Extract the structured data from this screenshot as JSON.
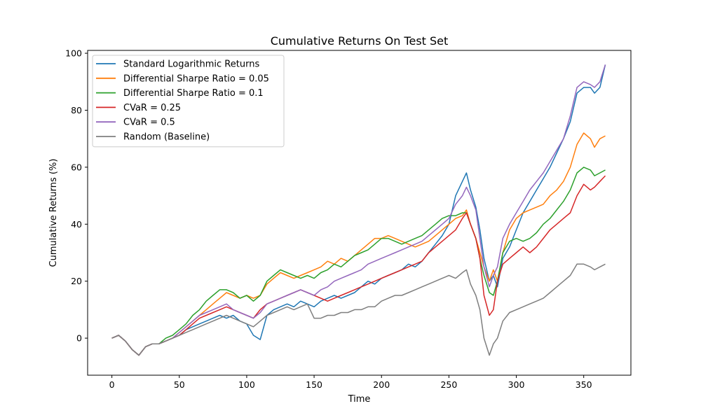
{
  "chart_data": {
    "type": "line",
    "title": "Cumulative Returns On Test Set",
    "xlabel": "Time",
    "ylabel": "Cumulative Returns (%)",
    "xlim": [
      -18,
      385
    ],
    "ylim": [
      -13,
      101
    ],
    "x_ticks": [
      0,
      50,
      100,
      150,
      200,
      250,
      300,
      350
    ],
    "y_ticks": [
      0,
      20,
      40,
      60,
      80,
      100
    ],
    "grid": false,
    "legend_position": "top-left",
    "series": [
      {
        "name": "Standard Logarithmic Returns",
        "color": "#1f77b4",
        "x": [
          0,
          5,
          10,
          15,
          20,
          25,
          30,
          35,
          40,
          45,
          50,
          55,
          60,
          65,
          70,
          75,
          80,
          85,
          90,
          95,
          100,
          105,
          110,
          115,
          120,
          125,
          130,
          135,
          140,
          145,
          150,
          155,
          160,
          165,
          170,
          175,
          180,
          185,
          190,
          195,
          200,
          205,
          210,
          215,
          220,
          225,
          230,
          235,
          240,
          245,
          250,
          255,
          260,
          263,
          266,
          270,
          273,
          276,
          280,
          283,
          286,
          290,
          295,
          300,
          305,
          310,
          315,
          320,
          325,
          330,
          335,
          340,
          345,
          350,
          355,
          358,
          362,
          366
        ],
        "y": [
          0,
          1,
          -1,
          -4,
          -6,
          -3,
          -2,
          -2,
          -1,
          0,
          1,
          3,
          4,
          5,
          6,
          7,
          8,
          7,
          8,
          6,
          5,
          1,
          -0.5,
          8,
          10,
          11,
          12,
          11,
          13,
          12,
          11,
          13,
          14,
          15,
          14,
          15,
          16,
          18,
          20,
          19,
          21,
          22,
          23,
          24,
          26,
          25,
          27,
          30,
          33,
          36,
          40,
          50,
          55,
          58,
          52,
          46,
          38,
          28,
          20,
          22,
          18,
          28,
          32,
          38,
          44,
          48,
          52,
          56,
          60,
          65,
          70,
          76,
          86,
          88,
          88,
          86,
          88,
          96
        ]
      },
      {
        "name": "Differential Sharpe Ratio = 0.05",
        "color": "#ff7f0e",
        "x": [
          0,
          5,
          10,
          15,
          20,
          25,
          30,
          35,
          40,
          45,
          50,
          55,
          60,
          65,
          70,
          75,
          80,
          85,
          90,
          95,
          100,
          105,
          110,
          115,
          120,
          125,
          130,
          135,
          140,
          145,
          150,
          155,
          160,
          165,
          170,
          175,
          180,
          185,
          190,
          195,
          200,
          205,
          210,
          215,
          220,
          225,
          230,
          235,
          240,
          245,
          250,
          255,
          260,
          263,
          266,
          270,
          273,
          276,
          280,
          283,
          286,
          290,
          295,
          300,
          305,
          310,
          315,
          320,
          325,
          330,
          335,
          340,
          345,
          350,
          355,
          358,
          362,
          366
        ],
        "y": [
          0,
          1,
          -1,
          -4,
          -6,
          -3,
          -2,
          -2,
          -1,
          0,
          2,
          4,
          6,
          8,
          10,
          12,
          14,
          16,
          15,
          14,
          15,
          14,
          15,
          19,
          21,
          23,
          22,
          21,
          22,
          23,
          24,
          25,
          27,
          26,
          28,
          27,
          29,
          31,
          33,
          35,
          35,
          36,
          35,
          34,
          33,
          32,
          33,
          34,
          36,
          38,
          40,
          42,
          43,
          45,
          40,
          35,
          30,
          25,
          20,
          24,
          20,
          30,
          38,
          42,
          44,
          45,
          46,
          47,
          50,
          52,
          55,
          60,
          68,
          72,
          70,
          67,
          70,
          71
        ]
      },
      {
        "name": "Differential Sharpe Ratio = 0.1",
        "color": "#2ca02c",
        "x": [
          0,
          5,
          10,
          15,
          20,
          25,
          30,
          35,
          40,
          45,
          50,
          55,
          60,
          65,
          70,
          75,
          80,
          85,
          90,
          95,
          100,
          105,
          110,
          115,
          120,
          125,
          130,
          135,
          140,
          145,
          150,
          155,
          160,
          165,
          170,
          175,
          180,
          185,
          190,
          195,
          200,
          205,
          210,
          215,
          220,
          225,
          230,
          235,
          240,
          245,
          250,
          255,
          260,
          263,
          266,
          270,
          273,
          276,
          280,
          283,
          286,
          290,
          295,
          300,
          305,
          310,
          315,
          320,
          325,
          330,
          335,
          340,
          345,
          350,
          355,
          358,
          362,
          366
        ],
        "y": [
          0,
          1,
          -1,
          -4,
          -6,
          -3,
          -2,
          -2,
          0,
          1,
          3,
          5,
          8,
          10,
          13,
          15,
          17,
          17,
          16,
          14,
          15,
          13,
          15,
          20,
          22,
          24,
          23,
          22,
          21,
          22,
          21,
          23,
          24,
          26,
          25,
          27,
          29,
          30,
          31,
          33,
          35,
          35,
          34,
          33,
          34,
          35,
          36,
          38,
          40,
          42,
          43,
          43,
          44,
          44,
          40,
          35,
          28,
          22,
          16,
          15,
          20,
          30,
          34,
          35,
          34,
          35,
          37,
          40,
          42,
          45,
          48,
          52,
          58,
          60,
          59,
          57,
          58,
          59
        ]
      },
      {
        "name": "CVaR = 0.25",
        "color": "#d62728",
        "x": [
          0,
          5,
          10,
          15,
          20,
          25,
          30,
          35,
          40,
          45,
          50,
          55,
          60,
          65,
          70,
          75,
          80,
          85,
          90,
          95,
          100,
          105,
          110,
          115,
          120,
          125,
          130,
          135,
          140,
          145,
          150,
          155,
          160,
          165,
          170,
          175,
          180,
          185,
          190,
          195,
          200,
          205,
          210,
          215,
          220,
          225,
          230,
          235,
          240,
          245,
          250,
          255,
          260,
          263,
          266,
          270,
          273,
          276,
          280,
          283,
          286,
          290,
          295,
          300,
          305,
          310,
          315,
          320,
          325,
          330,
          335,
          340,
          345,
          350,
          355,
          358,
          362,
          366
        ],
        "y": [
          0,
          1,
          -1,
          -4,
          -6,
          -3,
          -2,
          -2,
          -1,
          0,
          1,
          3,
          5,
          7,
          8,
          9,
          10,
          11,
          10,
          9,
          8,
          7,
          10,
          12,
          13,
          14,
          15,
          16,
          17,
          16,
          15,
          14,
          13,
          14,
          15,
          16,
          17,
          18,
          19,
          20,
          21,
          22,
          23,
          24,
          25,
          26,
          27,
          30,
          32,
          34,
          36,
          38,
          42,
          44,
          40,
          35,
          28,
          15,
          8,
          10,
          20,
          26,
          28,
          30,
          32,
          30,
          32,
          35,
          38,
          40,
          42,
          44,
          50,
          54,
          52,
          53,
          55,
          57
        ]
      },
      {
        "name": "CVaR = 0.5",
        "color": "#9467bd",
        "x": [
          0,
          5,
          10,
          15,
          20,
          25,
          30,
          35,
          40,
          45,
          50,
          55,
          60,
          65,
          70,
          75,
          80,
          85,
          90,
          95,
          100,
          105,
          110,
          115,
          120,
          125,
          130,
          135,
          140,
          145,
          150,
          155,
          160,
          165,
          170,
          175,
          180,
          185,
          190,
          195,
          200,
          205,
          210,
          215,
          220,
          225,
          230,
          235,
          240,
          245,
          250,
          255,
          260,
          263,
          266,
          270,
          273,
          276,
          280,
          283,
          286,
          290,
          295,
          300,
          305,
          310,
          315,
          320,
          325,
          330,
          335,
          340,
          345,
          350,
          355,
          358,
          362,
          366
        ],
        "y": [
          0,
          1,
          -1,
          -4,
          -6,
          -3,
          -2,
          -2,
          -1,
          0,
          2,
          4,
          6,
          8,
          9,
          10,
          11,
          12,
          10,
          9,
          8,
          7,
          9,
          12,
          13,
          14,
          15,
          16,
          17,
          16,
          15,
          17,
          18,
          20,
          21,
          22,
          23,
          24,
          26,
          27,
          28,
          29,
          30,
          31,
          32,
          33,
          34,
          36,
          38,
          40,
          42,
          47,
          50,
          53,
          50,
          45,
          35,
          25,
          18,
          22,
          25,
          35,
          40,
          44,
          48,
          52,
          55,
          58,
          62,
          66,
          70,
          78,
          88,
          90,
          89,
          88,
          90,
          96
        ]
      },
      {
        "name": "Random (Baseline)",
        "color": "#7f7f7f",
        "x": [
          0,
          5,
          10,
          15,
          20,
          25,
          30,
          35,
          40,
          45,
          50,
          55,
          60,
          65,
          70,
          75,
          80,
          85,
          90,
          95,
          100,
          105,
          110,
          115,
          120,
          125,
          130,
          135,
          140,
          145,
          150,
          155,
          160,
          165,
          170,
          175,
          180,
          185,
          190,
          195,
          200,
          205,
          210,
          215,
          220,
          225,
          230,
          235,
          240,
          245,
          250,
          255,
          260,
          263,
          266,
          270,
          273,
          276,
          280,
          283,
          286,
          290,
          295,
          300,
          305,
          310,
          315,
          320,
          325,
          330,
          335,
          340,
          345,
          350,
          355,
          358,
          362,
          366
        ],
        "y": [
          0,
          1,
          -1,
          -4,
          -6,
          -3,
          -2,
          -2,
          -1,
          0,
          1,
          2,
          3,
          4,
          5,
          6,
          7,
          8,
          7,
          6,
          5,
          4,
          6,
          8,
          9,
          10,
          11,
          10,
          11,
          12,
          7,
          7,
          8,
          8,
          9,
          9,
          10,
          10,
          11,
          11,
          13,
          14,
          15,
          15,
          16,
          17,
          18,
          19,
          20,
          21,
          22,
          21,
          23,
          24,
          19,
          15,
          10,
          0,
          -6,
          -2,
          0,
          6,
          9,
          10,
          11,
          12,
          13,
          14,
          16,
          18,
          20,
          22,
          26,
          26,
          25,
          24,
          25,
          26
        ]
      }
    ]
  }
}
